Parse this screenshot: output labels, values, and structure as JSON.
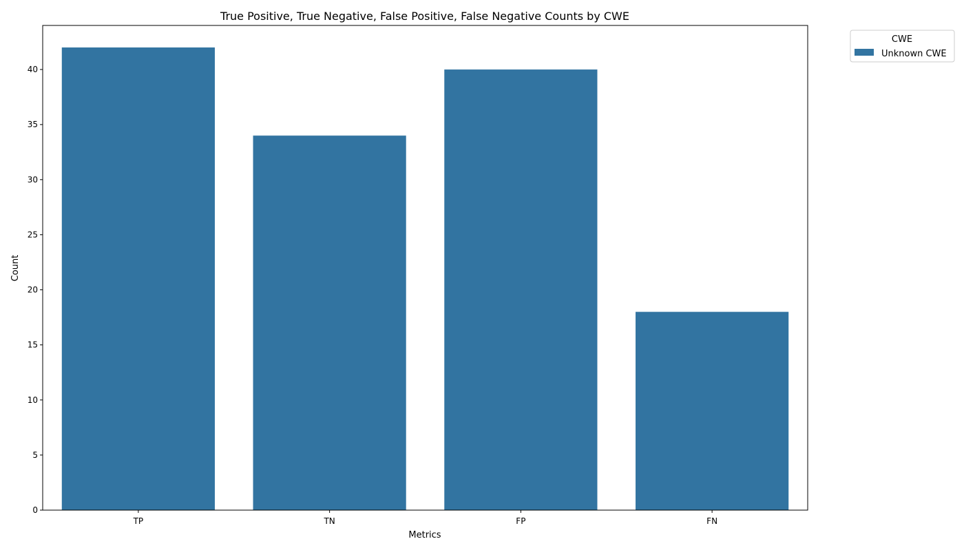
{
  "chart_data": {
    "type": "bar",
    "title": "True Positive, True Negative, False Positive, False Negative Counts by CWE",
    "xlabel": "Metrics",
    "ylabel": "Count",
    "categories": [
      "TP",
      "TN",
      "FP",
      "FN"
    ],
    "series": [
      {
        "name": "Unknown CWE",
        "values": [
          42,
          34,
          40,
          18
        ],
        "color": "#3274a1"
      }
    ],
    "ylim": [
      0,
      44
    ],
    "yticks": [
      0,
      5,
      10,
      15,
      20,
      25,
      30,
      35,
      40
    ],
    "grid": false,
    "legend": {
      "title": "CWE",
      "placement": "outside-top-right"
    }
  }
}
